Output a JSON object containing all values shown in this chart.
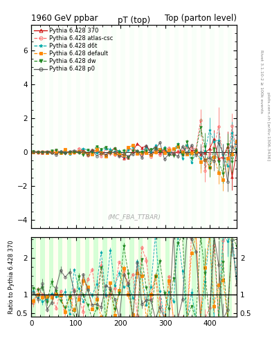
{
  "title_left": "1960 GeV ppbar",
  "title_right": "Top (parton level)",
  "plot_title": "pT (top)",
  "ylabel_ratio": "Ratio to Pythia 6.428 370",
  "watermark": "(MC_FBA_TTBAR)",
  "xlim": [
    0,
    460
  ],
  "ylim_main": [
    -4.5,
    7.5
  ],
  "ylim_ratio": [
    0.4,
    2.55
  ],
  "series": [
    {
      "label": "Pythia 6.428 370",
      "color": "#cc0000",
      "linestyle": "-",
      "marker": "^",
      "markerfacecolor": "none"
    },
    {
      "label": "Pythia 6.428 atlas-csc",
      "color": "#ff6666",
      "linestyle": "--",
      "marker": "o",
      "markerfacecolor": "none"
    },
    {
      "label": "Pythia 6.428 d6t",
      "color": "#00aaaa",
      "linestyle": "--",
      "marker": "*",
      "markerfacecolor": "#00aaaa"
    },
    {
      "label": "Pythia 6.428 default",
      "color": "#ff8800",
      "linestyle": "--",
      "marker": "s",
      "markerfacecolor": "#ff8800"
    },
    {
      "label": "Pythia 6.428 dw",
      "color": "#228822",
      "linestyle": "--",
      "marker": "v",
      "markerfacecolor": "#228822"
    },
    {
      "label": "Pythia 6.428 p0",
      "color": "#555555",
      "linestyle": "-",
      "marker": "o",
      "markerfacecolor": "none"
    }
  ],
  "n_points": 46,
  "x_max": 460
}
